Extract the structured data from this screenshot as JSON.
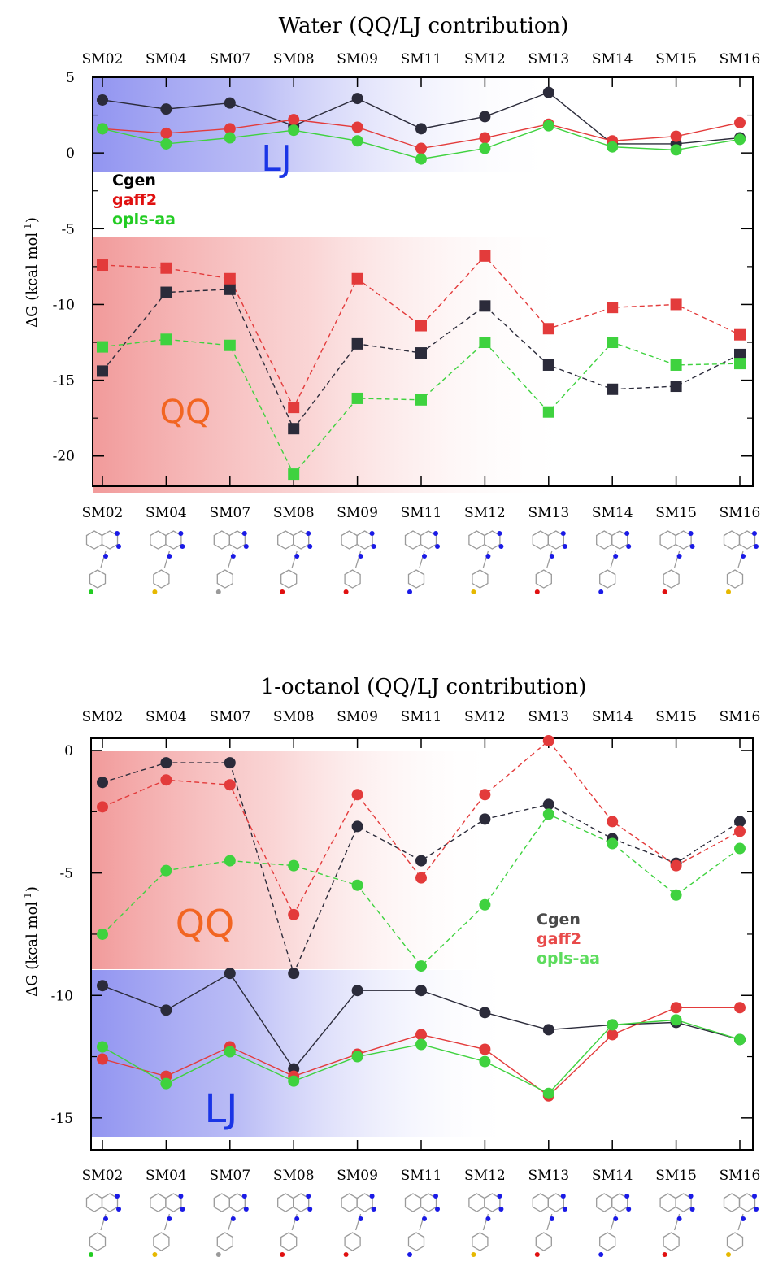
{
  "colors": {
    "Cgen": "#2b2b3a",
    "gaff2": "#e33b3b",
    "opls-aa": "#3fd23f",
    "QQ_label": "#f26522",
    "LJ_label": "#1a35e6"
  },
  "molecule_panels": [
    "chemical-structures-water",
    "chemical-structures-octanol"
  ],
  "chart_data": [
    {
      "type": "line",
      "title": "Water (QQ/LJ contribution)",
      "ylabel": "ΔG (kcal mol-1)",
      "ylim": [
        -22,
        5
      ],
      "yticks": [
        5,
        0,
        -5,
        -10,
        -15,
        -20
      ],
      "categories": [
        "SM02",
        "SM04",
        "SM07",
        "SM08",
        "SM09",
        "SM11",
        "SM12",
        "SM13",
        "SM14",
        "SM15",
        "SM16"
      ],
      "region_labels": {
        "lj": "LJ",
        "qq": "QQ"
      },
      "legend": [
        "Cgen",
        "gaff2",
        "opls-aa"
      ],
      "series": [
        {
          "name": "Cgen",
          "component": "LJ",
          "style": "solid",
          "marker": "circle",
          "values": [
            3.5,
            2.9,
            3.3,
            1.8,
            3.6,
            1.6,
            2.4,
            4.0,
            0.6,
            0.6,
            1.0
          ]
        },
        {
          "name": "gaff2",
          "component": "LJ",
          "style": "solid",
          "marker": "circle",
          "values": [
            1.6,
            1.3,
            1.6,
            2.2,
            1.7,
            0.3,
            1.0,
            1.9,
            0.8,
            1.1,
            2.0
          ]
        },
        {
          "name": "opls-aa",
          "component": "LJ",
          "style": "solid",
          "marker": "circle",
          "values": [
            1.6,
            0.6,
            1.0,
            1.5,
            0.8,
            -0.4,
            0.3,
            1.8,
            0.4,
            0.2,
            0.9
          ]
        },
        {
          "name": "Cgen",
          "component": "QQ",
          "style": "dashed",
          "marker": "square",
          "values": [
            -14.4,
            -9.2,
            -9.0,
            -18.2,
            -12.6,
            -13.2,
            -10.1,
            -14.0,
            -15.6,
            -15.4,
            -13.3
          ]
        },
        {
          "name": "gaff2",
          "component": "QQ",
          "style": "dashed",
          "marker": "square",
          "values": [
            -7.4,
            -7.6,
            -8.3,
            -16.8,
            -8.3,
            -11.4,
            -6.8,
            -11.6,
            -10.2,
            -10.0,
            -12.0
          ]
        },
        {
          "name": "opls-aa",
          "component": "QQ",
          "style": "dashed",
          "marker": "square",
          "values": [
            -12.8,
            -12.3,
            -12.7,
            -21.2,
            -16.2,
            -16.3,
            -12.5,
            -17.1,
            -12.5,
            -14.0,
            -13.9
          ]
        }
      ]
    },
    {
      "type": "line",
      "title": "1-octanol (QQ/LJ contribution)",
      "ylabel": "ΔG (kcal mol-1)",
      "ylim": [
        -16.3,
        0.5
      ],
      "yticks": [
        0,
        -5,
        -10,
        -15
      ],
      "categories": [
        "SM02",
        "SM04",
        "SM07",
        "SM08",
        "SM09",
        "SM11",
        "SM12",
        "SM13",
        "SM14",
        "SM15",
        "SM16"
      ],
      "region_labels": {
        "lj": "LJ",
        "qq": "QQ"
      },
      "legend": [
        "Cgen",
        "gaff2",
        "opls-aa"
      ],
      "series": [
        {
          "name": "Cgen",
          "component": "QQ",
          "style": "dashed",
          "marker": "circle",
          "values": [
            -1.3,
            -0.5,
            -0.5,
            -9.1,
            -3.1,
            -4.5,
            -2.8,
            -2.2,
            -3.6,
            -4.6,
            -2.9
          ]
        },
        {
          "name": "gaff2",
          "component": "QQ",
          "style": "dashed",
          "marker": "circle",
          "values": [
            -2.3,
            -1.2,
            -1.4,
            -6.7,
            -1.8,
            -5.2,
            -1.8,
            0.4,
            -2.9,
            -4.7,
            -3.3
          ]
        },
        {
          "name": "opls-aa",
          "component": "QQ",
          "style": "dashed",
          "marker": "circle",
          "values": [
            -7.5,
            -4.9,
            -4.5,
            -4.7,
            -5.5,
            -8.8,
            -6.3,
            -2.6,
            -3.8,
            -5.9,
            -4.0
          ]
        },
        {
          "name": "Cgen",
          "component": "LJ",
          "style": "solid",
          "marker": "circle",
          "values": [
            -9.6,
            -10.6,
            -9.1,
            -13.0,
            -9.8,
            -9.8,
            -10.7,
            -11.4,
            -11.2,
            -11.1,
            -11.8
          ]
        },
        {
          "name": "gaff2",
          "component": "LJ",
          "style": "solid",
          "marker": "circle",
          "values": [
            -12.6,
            -13.3,
            -12.1,
            -13.3,
            -12.4,
            -11.6,
            -12.2,
            -14.1,
            -11.6,
            -10.5,
            -10.5
          ]
        },
        {
          "name": "opls-aa",
          "component": "LJ",
          "style": "solid",
          "marker": "circle",
          "values": [
            -12.1,
            -13.6,
            -12.3,
            -13.5,
            -12.5,
            -12.0,
            -12.7,
            -14.0,
            -11.2,
            -11.0,
            -11.8
          ]
        }
      ]
    }
  ]
}
